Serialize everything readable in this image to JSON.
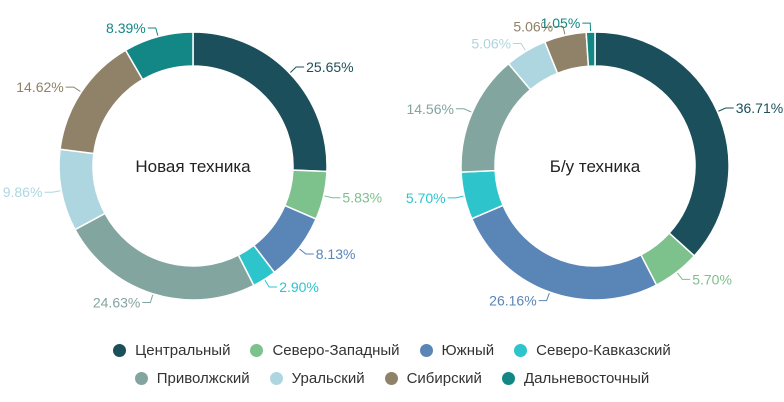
{
  "legend": {
    "rows": [
      [
        {
          "label": "Центральный",
          "color": "#1b4f5b"
        },
        {
          "label": "Северо-Западный",
          "color": "#7dc18c"
        },
        {
          "label": "Южный",
          "color": "#5a86b7"
        },
        {
          "label": "Северо-Кавказский",
          "color": "#2ec4cc"
        }
      ],
      [
        {
          "label": "Приволжский",
          "color": "#83a59f"
        },
        {
          "label": "Уральский",
          "color": "#aed6e0"
        },
        {
          "label": "Сибирский",
          "color": "#8f8268"
        },
        {
          "label": "Дальневосточный",
          "color": "#138786"
        }
      ]
    ]
  },
  "chart_data": [
    {
      "type": "pie",
      "title": "Новая техника",
      "categories": [
        "Центральный",
        "Северо-Западный",
        "Южный",
        "Северо-Кавказский",
        "Приволжский",
        "Уральский",
        "Сибирский",
        "Дальневосточный"
      ],
      "values": [
        25.65,
        5.83,
        8.13,
        2.9,
        24.63,
        9.86,
        14.62,
        8.39
      ],
      "labels": [
        "25.65%",
        "5.83%",
        "8.13%",
        "2.90%",
        "24.63%",
        "9.86%",
        "14.62%",
        "8.39%"
      ],
      "colors": [
        "#1b4f5b",
        "#7dc18c",
        "#5a86b7",
        "#2ec4cc",
        "#83a59f",
        "#aed6e0",
        "#8f8268",
        "#138786"
      ]
    },
    {
      "type": "pie",
      "title": "Б/у техника",
      "categories": [
        "Центральный",
        "Северо-Западный",
        "Южный",
        "Северо-Кавказский",
        "Приволжский",
        "Уральский",
        "Сибирский",
        "Дальневосточный"
      ],
      "values": [
        36.71,
        5.7,
        26.16,
        5.7,
        14.56,
        5.06,
        5.06,
        1.05
      ],
      "labels": [
        "36.71%",
        "5.70%",
        "26.16%",
        "5.70%",
        "14.56%",
        "5.06%",
        "5.06%",
        "1.05%"
      ],
      "colors": [
        "#1b4f5b",
        "#7dc18c",
        "#5a86b7",
        "#2ec4cc",
        "#83a59f",
        "#aed6e0",
        "#8f8268",
        "#138786"
      ]
    }
  ]
}
